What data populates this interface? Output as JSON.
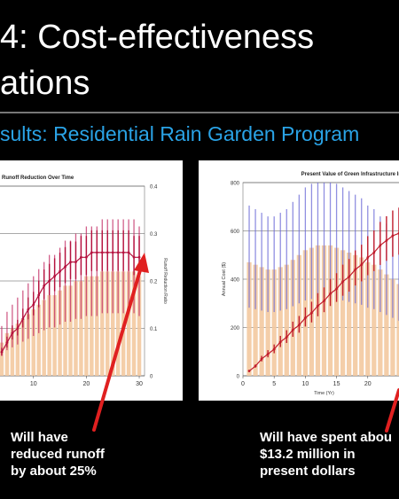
{
  "slide": {
    "title_line1": "4: Cost-effectiveness",
    "title_line2": "ations",
    "subtitle": "sults: Residential Rain Garden Program",
    "caption_left": [
      "Will have",
      "reduced runoff",
      "by about 25%"
    ],
    "caption_right": [
      "Will have spent abou",
      "$13.2 million in",
      "present dollars"
    ],
    "colors": {
      "background": "#000000",
      "title": "#ffffff",
      "subtitle": "#2aa3e6",
      "arrow": "#e02020"
    }
  },
  "chart_data": [
    {
      "type": "bar",
      "title": "Runoff Reduction Over Time",
      "ylabel_right": "Runoff Reduction Ratio",
      "x_ticks": [
        "10",
        "20",
        "30"
      ],
      "y_ticks": [
        "0",
        "0.1",
        "0.2",
        "0.3",
        "0.4"
      ],
      "ylim": [
        0,
        0.4
      ],
      "xlim": [
        3,
        31
      ],
      "x": [
        4,
        5,
        6,
        7,
        8,
        9,
        10,
        11,
        12,
        13,
        14,
        15,
        16,
        17,
        18,
        19,
        20,
        21,
        22,
        23,
        24,
        25,
        26,
        27,
        28,
        29,
        30
      ],
      "series": [
        {
          "values": [
            0.07,
            0.09,
            0.1,
            0.11,
            0.12,
            0.13,
            0.14,
            0.15,
            0.16,
            0.17,
            0.17,
            0.18,
            0.19,
            0.19,
            0.2,
            0.2,
            0.21,
            0.21,
            0.21,
            0.22,
            0.22,
            0.22,
            0.22,
            0.22,
            0.22,
            0.22,
            0.21
          ]
        },
        {
          "values": [
            0.05,
            0.07,
            0.09,
            0.1,
            0.12,
            0.14,
            0.15,
            0.17,
            0.19,
            0.2,
            0.21,
            0.22,
            0.23,
            0.24,
            0.24,
            0.25,
            0.25,
            0.26,
            0.26,
            0.26,
            0.26,
            0.26,
            0.26,
            0.26,
            0.26,
            0.25,
            0.25
          ]
        }
      ],
      "grid": "horizontal"
    },
    {
      "type": "bar",
      "title": "Present Value of Green Infrastructure Imp",
      "xlabel": "Time (Yr)",
      "ylabel": "Annual Cost ($)",
      "x_ticks": [
        "0",
        "5",
        "10",
        "15",
        "20"
      ],
      "y_ticks": [
        "0",
        "200",
        "400",
        "600",
        "800"
      ],
      "ylim": [
        0,
        800
      ],
      "xlim": [
        0,
        26
      ],
      "x": [
        1,
        2,
        3,
        4,
        5,
        6,
        7,
        8,
        9,
        10,
        11,
        12,
        13,
        14,
        15,
        16,
        17,
        18,
        19,
        20,
        21,
        22,
        23,
        24,
        25
      ],
      "series": [
        {
          "values": [
            470,
            460,
            450,
            440,
            440,
            450,
            460,
            480,
            500,
            520,
            530,
            540,
            540,
            540,
            530,
            520,
            510,
            500,
            490,
            470,
            460,
            440,
            420,
            400,
            380
          ]
        },
        {
          "values": [
            20,
            40,
            70,
            90,
            110,
            140,
            160,
            190,
            210,
            240,
            260,
            290,
            310,
            340,
            360,
            390,
            410,
            440,
            460,
            490,
            510,
            540,
            560,
            580,
            590
          ]
        }
      ],
      "grid": "horizontal"
    }
  ]
}
